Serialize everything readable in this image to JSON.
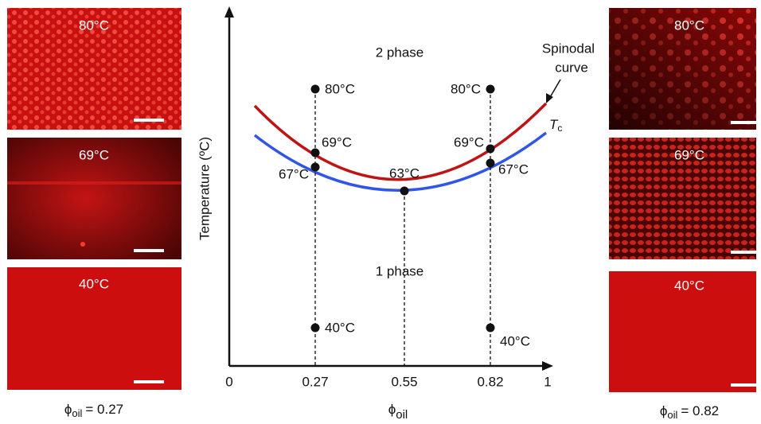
{
  "left_panels": {
    "caption": {
      "symbol": "ϕ",
      "subscript": "oil",
      "text": "= 0.27"
    },
    "images": [
      {
        "label": "80°C"
      },
      {
        "label": "69°C"
      },
      {
        "label": "40°C"
      }
    ]
  },
  "right_panels": {
    "caption": {
      "symbol": "ϕ",
      "subscript": "oil",
      "text": "= 0.82"
    },
    "images": [
      {
        "label": "80°C"
      },
      {
        "label": "69°C"
      },
      {
        "label": "40°C"
      }
    ]
  },
  "diagram": {
    "y_axis_label": "Temperature (ºC)",
    "x_axis_label": {
      "symbol": "ϕ",
      "subscript": "oil"
    },
    "xticks": [
      0,
      0.27,
      0.55,
      0.82,
      1
    ],
    "regions": {
      "upper": "2 phase",
      "lower": "1 phase"
    },
    "curves": {
      "spinodal": [
        "Spinodal",
        "curve"
      ],
      "tc": {
        "symbol": "T",
        "subscript": "c"
      }
    },
    "points": {
      "left": [
        "80°C",
        "69°C",
        "67°C",
        "40°C"
      ],
      "middle": "63°C",
      "right": [
        "80°C",
        "69°C",
        "67°C",
        "40°C"
      ]
    }
  }
}
